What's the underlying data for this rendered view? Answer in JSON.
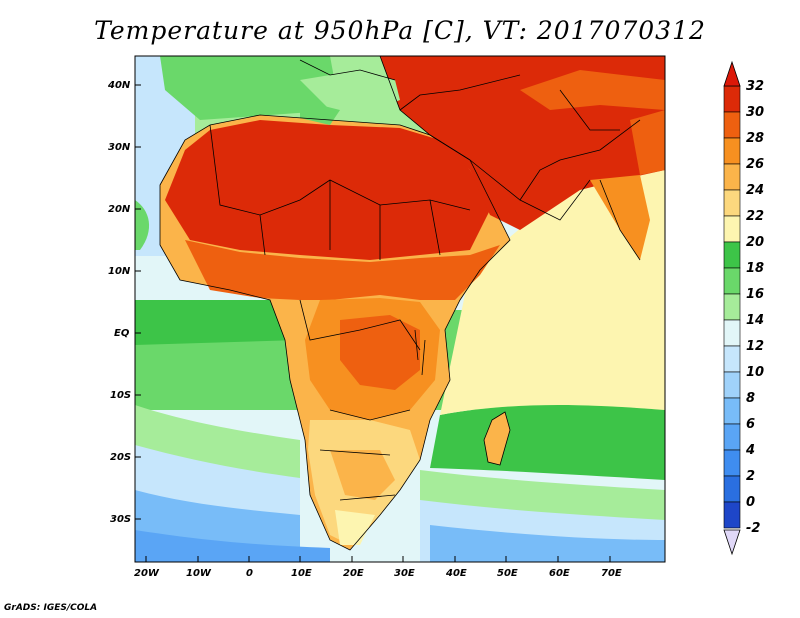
{
  "title": "Temperature at 950hPa [C], VT: 2017070312",
  "credit": "GrADS: IGES/COLA",
  "colors": {
    "levels": [
      {
        "label": "-2",
        "color": "#1c2a8c"
      },
      {
        "label": "0",
        "color": "#1e46c8"
      },
      {
        "label": "2",
        "color": "#2a6fe0"
      },
      {
        "label": "4",
        "color": "#3f8df0"
      },
      {
        "label": "6",
        "color": "#5aa5f5"
      },
      {
        "label": "8",
        "color": "#78bcf8"
      },
      {
        "label": "10",
        "color": "#a0d2fa"
      },
      {
        "label": "12",
        "color": "#c6e6fc"
      },
      {
        "label": "14",
        "color": "#e2f6f8"
      },
      {
        "label": "16",
        "color": "#a6ec9a"
      },
      {
        "label": "18",
        "color": "#6ad86a"
      },
      {
        "label": "20",
        "color": "#3dc448"
      },
      {
        "label": "22",
        "color": "#fdf5b0"
      },
      {
        "label": "24",
        "color": "#fcd87e"
      },
      {
        "label": "26",
        "color": "#fbb44a"
      },
      {
        "label": "28",
        "color": "#f79020"
      },
      {
        "label": "30",
        "color": "#ee6010"
      },
      {
        "label": "32",
        "color": "#dc2a08"
      }
    ],
    "top_arrow": "#dc1808",
    "bottom_arrow": "#e0d8f8"
  },
  "map": {
    "lat_labels": [
      "40N",
      "30N",
      "20N",
      "10N",
      "EQ",
      "10S",
      "20S",
      "30S"
    ],
    "lon_labels": [
      "20W",
      "10W",
      "0",
      "10E",
      "20E",
      "30E",
      "40E",
      "50E",
      "60E",
      "70E"
    ]
  },
  "colorbar": {
    "labels": [
      "32",
      "30",
      "28",
      "26",
      "24",
      "22",
      "20",
      "18",
      "16",
      "14",
      "12",
      "10",
      "8",
      "6",
      "4",
      "2",
      "0",
      "-2"
    ]
  }
}
